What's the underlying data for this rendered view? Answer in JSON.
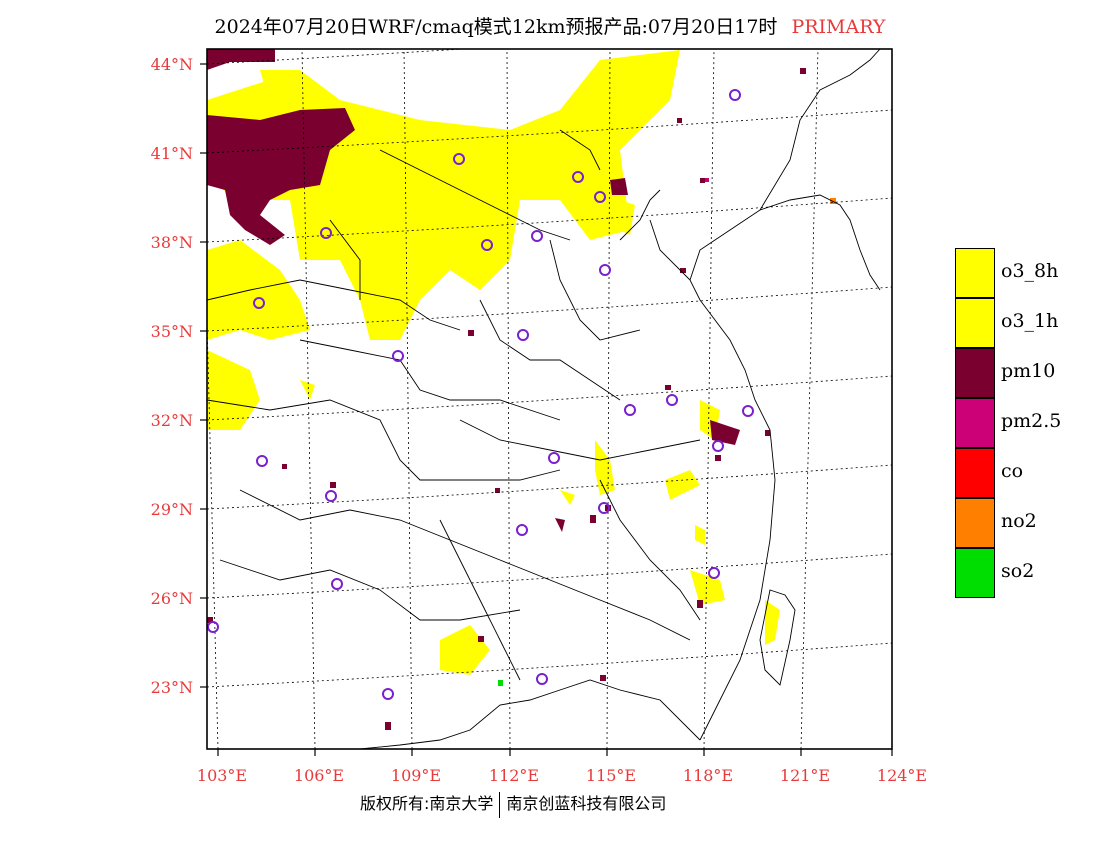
{
  "title": {
    "text": "2024年07月20日WRF/cmaq模式12km预报产品:07月20日17时",
    "tag": "PRIMARY"
  },
  "map": {
    "lat_labels": [
      "44°N",
      "41°N",
      "38°N",
      "35°N",
      "32°N",
      "29°N",
      "26°N",
      "23°N"
    ],
    "lon_labels": [
      "103°E",
      "106°E",
      "109°E",
      "112°E",
      "115°E",
      "118°E",
      "121°E",
      "124°E"
    ],
    "label_color": "#e83a3a"
  },
  "legend": {
    "items": [
      {
        "label": "o3_8h",
        "color": "#ffff00"
      },
      {
        "label": "o3_1h",
        "color": "#ffff00"
      },
      {
        "label": "pm10",
        "color": "#7a0030"
      },
      {
        "label": "pm2.5",
        "color": "#cc0077"
      },
      {
        "label": "co",
        "color": "#ff0000"
      },
      {
        "label": "no2",
        "color": "#ff8000"
      },
      {
        "label": "so2",
        "color": "#00dd00"
      }
    ]
  },
  "footer": {
    "left": "版权所有:南京大学",
    "right": "南京创蓝科技有限公司"
  }
}
